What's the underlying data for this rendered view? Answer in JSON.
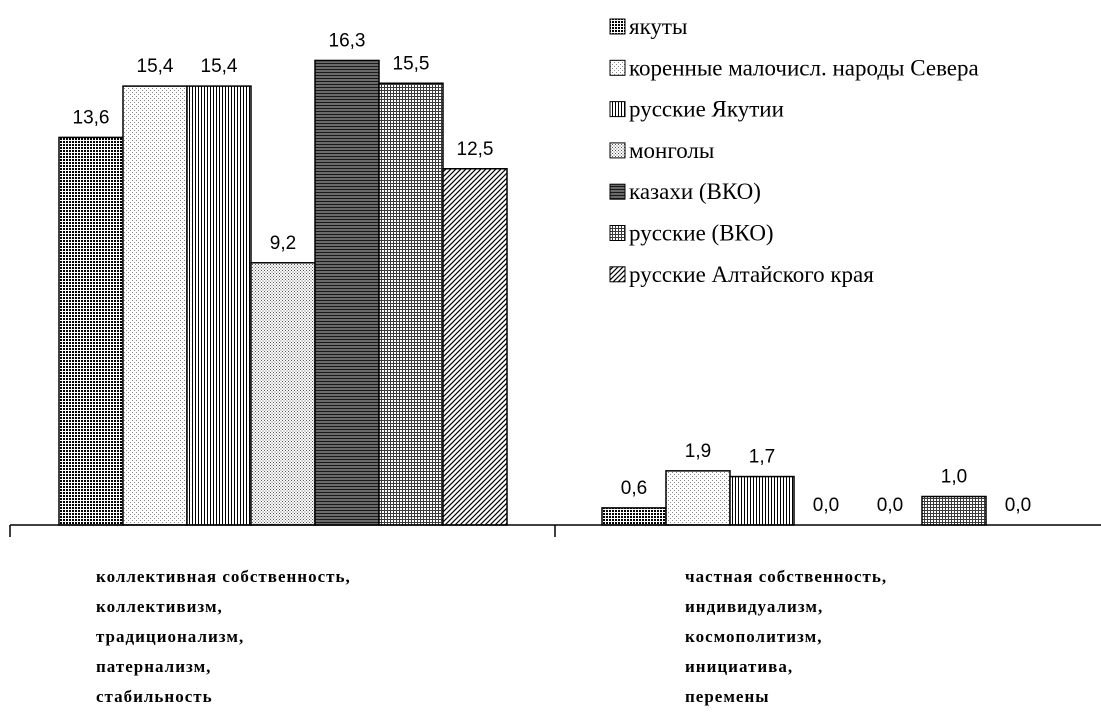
{
  "chart_data": {
    "type": "bar",
    "categories": [
      [
        "коллективная собственность,",
        "коллективизм,",
        "традиционализм,",
        "патернализм,",
        "стабильность"
      ],
      [
        "частная собственность,",
        "индивидуализм,",
        "космополитизм,",
        "инициатива,",
        "перемены"
      ]
    ],
    "series": [
      {
        "name": "якуты",
        "values": [
          13.6,
          0.6
        ],
        "labels": [
          "13,6",
          "0,6"
        ],
        "pattern": "dots-dense"
      },
      {
        "name": "коренные малочисл. народы Севера",
        "values": [
          15.4,
          1.9
        ],
        "labels": [
          "15,4",
          "1,9"
        ],
        "pattern": "dots-light"
      },
      {
        "name": " русские Якутии",
        "values": [
          15.4,
          1.7
        ],
        "labels": [
          "15,4",
          "1,7"
        ],
        "pattern": "vertical-lines"
      },
      {
        "name": "монголы",
        "values": [
          9.2,
          0.0
        ],
        "labels": [
          "9,2",
          "0,0"
        ],
        "pattern": "dots-medium"
      },
      {
        "name": "казахи (ВКО)",
        "values": [
          16.3,
          0.0
        ],
        "labels": [
          "16,3",
          "0,0"
        ],
        "pattern": "horizontal-dark"
      },
      {
        "name": "русские (ВКО)",
        "values": [
          15.5,
          1.0
        ],
        "labels": [
          "15,5",
          "1,0"
        ],
        "pattern": "grid-fine"
      },
      {
        "name": "русские Алтайского края",
        "values": [
          12.5,
          0.0
        ],
        "labels": [
          "12,5",
          "0,0"
        ],
        "pattern": "diagonal"
      }
    ],
    "ylim": [
      0,
      17
    ],
    "grid": false,
    "legend_position": "top-right"
  }
}
